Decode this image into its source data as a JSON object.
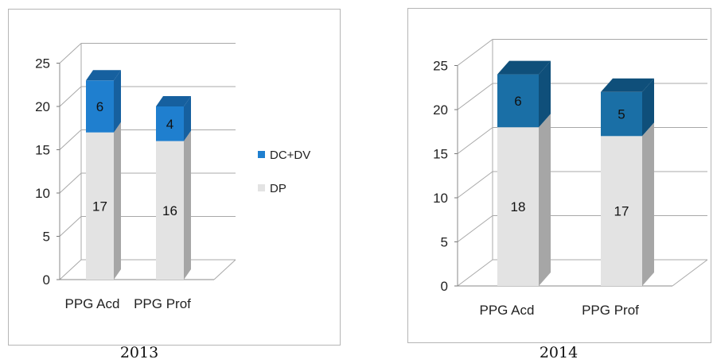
{
  "chart_data": [
    {
      "type": "bar",
      "stacked": true,
      "title": "2013",
      "categories": [
        "PPG Acd",
        "PPG Prof"
      ],
      "series": [
        {
          "name": "DP",
          "values": [
            17,
            16
          ]
        },
        {
          "name": "DC+DV",
          "values": [
            6,
            4
          ]
        }
      ],
      "ylim": [
        0,
        25
      ],
      "yticks": [
        "0",
        "5",
        "10",
        "15",
        "20",
        "25"
      ],
      "legend": "right",
      "grid": true
    },
    {
      "type": "bar",
      "stacked": true,
      "title": "2014",
      "categories": [
        "PPG Acd",
        "PPG Prof"
      ],
      "series": [
        {
          "name": "DP",
          "values": [
            18,
            17
          ]
        },
        {
          "name": "DC+DV",
          "values": [
            6,
            5
          ]
        }
      ],
      "ylim": [
        0,
        25
      ],
      "yticks": [
        "0",
        "5",
        "10",
        "15",
        "20",
        "25"
      ],
      "legend": "none",
      "grid": true
    }
  ],
  "colors": {
    "dp_front": "#e3e3e3",
    "dp_side": "#a6a6a6",
    "dc_front_2013": "#1f7fcf",
    "dc_side_2013": "#16609f",
    "dc_front_2014": "#1a6fa6",
    "dc_side_2014": "#0f4f7a",
    "grid": "#a8a8a8"
  }
}
